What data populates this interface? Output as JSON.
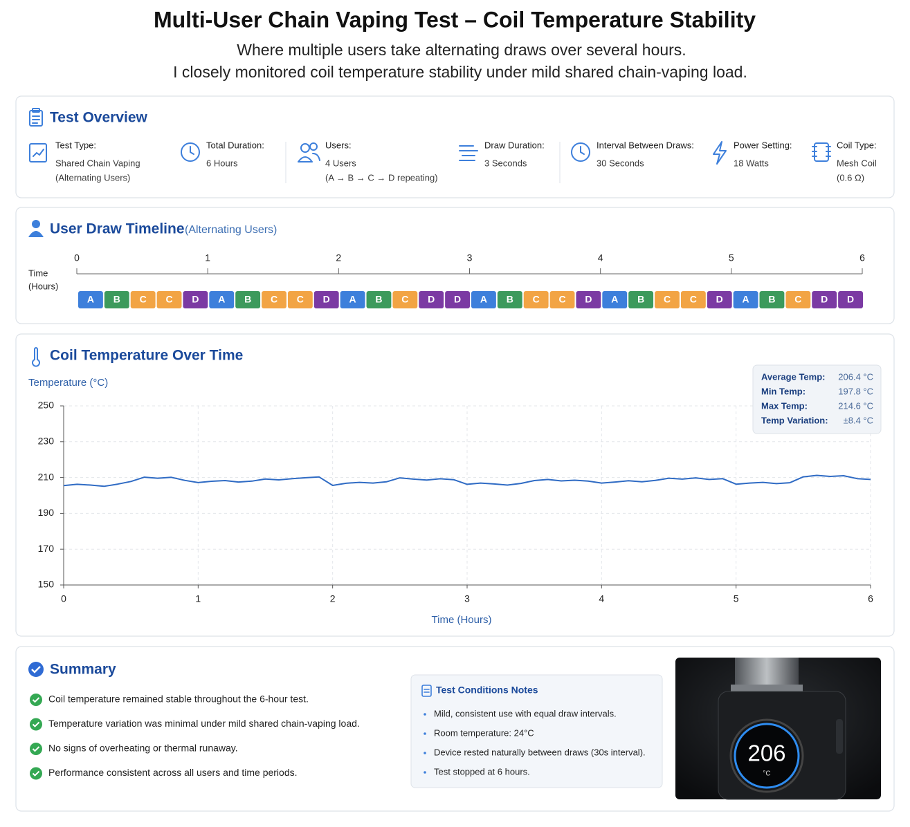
{
  "header": {
    "title": "Multi-User Chain Vaping Test – Coil Temperature Stability",
    "subtitle": [
      "Where multiple users take alternating draws over several hours.",
      "I closely monitored coil temperature stability under mild shared chain-vaping load."
    ]
  },
  "overview": {
    "title": "Test Overview",
    "items": [
      {
        "label": "Test Type:",
        "value": [
          "Shared Chain Vaping",
          "(Alternating Users)"
        ]
      },
      {
        "label": "Total Duration:",
        "value": [
          "6 Hours"
        ]
      },
      {
        "label": "Users:",
        "value": [
          "4 Users",
          "(A → B → C → D repeating)"
        ]
      },
      {
        "label": "Draw Duration:",
        "value": [
          "3 Seconds"
        ]
      },
      {
        "label": "Interval Between Draws:",
        "value": [
          "30 Seconds"
        ]
      },
      {
        "label": "Power Setting:",
        "value": [
          "18 Watts"
        ]
      },
      {
        "label": "Coil Type:",
        "value": [
          "Mesh Coil",
          "(0.6 Ω)"
        ]
      }
    ]
  },
  "timeline": {
    "title": "User Draw Timeline",
    "subtitle": "(Alternating Users)",
    "axis_label": [
      "Time",
      "(Hours)"
    ],
    "xlim": [
      0,
      6
    ],
    "xticks": [
      0,
      1,
      2,
      3,
      4,
      5,
      6
    ],
    "colors": {
      "A": "#3d7fdb",
      "B": "#3c9a5c",
      "C": "#f2a444",
      "D": "#7b3aa3"
    },
    "draws": [
      "A",
      "B",
      "C",
      "C",
      "D",
      "A",
      "B",
      "C",
      "C",
      "D",
      "A",
      "B",
      "C",
      "D",
      "D",
      "A",
      "B",
      "C",
      "C",
      "D",
      "A",
      "B",
      "C",
      "C",
      "D",
      "A",
      "B",
      "C",
      "D",
      "D"
    ]
  },
  "chart_data": {
    "type": "line",
    "title": "Coil Temperature Over Time",
    "y_label": "Temperature (°C)",
    "x_label": "Time (Hours)",
    "xlim": [
      0,
      6
    ],
    "ylim": [
      150,
      250
    ],
    "xticks": [
      0,
      1,
      2,
      3,
      4,
      5,
      6
    ],
    "yticks": [
      150,
      170,
      190,
      210,
      230,
      250
    ],
    "grid": true,
    "color": "#2f6bc4",
    "x": [
      0,
      0.1,
      0.2,
      0.3,
      0.4,
      0.5,
      0.6,
      0.7,
      0.8,
      0.9,
      1,
      1.1,
      1.2,
      1.3,
      1.4,
      1.5,
      1.6,
      1.7,
      1.8,
      1.9,
      2,
      2.1,
      2.2,
      2.3,
      2.4,
      2.5,
      2.6,
      2.7,
      2.8,
      2.9,
      3,
      3.1,
      3.2,
      3.3,
      3.4,
      3.5,
      3.6,
      3.7,
      3.8,
      3.9,
      4,
      4.1,
      4.2,
      4.3,
      4.4,
      4.5,
      4.6,
      4.7,
      4.8,
      4.9,
      5,
      5.1,
      5.2,
      5.3,
      5.4,
      5.5,
      5.6,
      5.7,
      5.8,
      5.9,
      6
    ],
    "values": [
      205.5,
      206.2,
      205.8,
      205.1,
      206.3,
      207.8,
      210.2,
      209.6,
      210.1,
      208.4,
      207.2,
      207.9,
      208.3,
      207.5,
      208.0,
      209.2,
      208.7,
      209.4,
      209.9,
      210.3,
      205.6,
      206.8,
      207.3,
      206.9,
      207.6,
      209.8,
      209.1,
      208.6,
      209.3,
      208.8,
      206.2,
      206.9,
      206.4,
      205.8,
      206.7,
      208.3,
      208.9,
      208.1,
      208.5,
      208.0,
      206.9,
      207.5,
      208.2,
      207.6,
      208.4,
      209.6,
      209.1,
      209.8,
      208.9,
      209.4,
      206.3,
      206.9,
      207.3,
      206.6,
      207.1,
      210.4,
      211.2,
      210.6,
      211.0,
      209.4,
      208.9
    ],
    "stats": [
      {
        "label": "Average Temp:",
        "value": "206.4 °C"
      },
      {
        "label": "Min Temp:",
        "value": "197.8 °C"
      },
      {
        "label": "Max Temp:",
        "value": "214.6 °C"
      },
      {
        "label": "Temp Variation:",
        "value": "±8.4 °C"
      }
    ]
  },
  "summary": {
    "title": "Summary",
    "points": [
      "Coil temperature remained stable throughout the 6-hour test.",
      "Temperature variation was minimal under mild shared chain-vaping load.",
      "No signs of overheating or thermal runaway.",
      "Performance consistent across all users and time periods."
    ],
    "notes_title": "Test Conditions Notes",
    "notes": [
      "Mild, consistent use with equal draw intervals.",
      "Room temperature: 24°C",
      "Device rested naturally between draws (30s interval).",
      "Test stopped at 6 hours."
    ],
    "device_display": {
      "reading": "206",
      "unit": "°C"
    }
  }
}
